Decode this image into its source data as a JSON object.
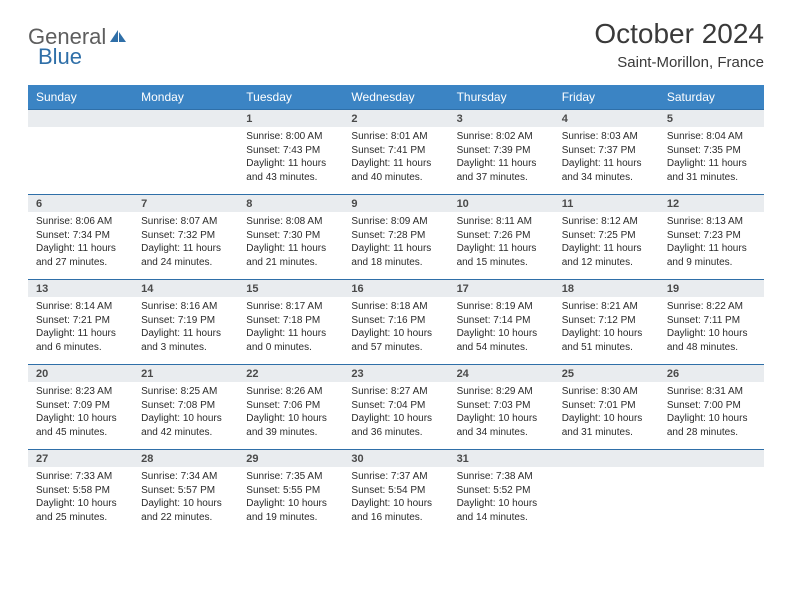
{
  "brand": {
    "part1": "General",
    "part2": "Blue"
  },
  "title": "October 2024",
  "location": "Saint-Morillon, France",
  "header_color": "#3b84c4",
  "accent_line_color": "#2f6fa8",
  "strip_bg": "#e9ecef",
  "dow": [
    "Sunday",
    "Monday",
    "Tuesday",
    "Wednesday",
    "Thursday",
    "Friday",
    "Saturday"
  ],
  "weeks": [
    [
      {
        "n": "",
        "sr": "",
        "ss": "",
        "dl": ""
      },
      {
        "n": "",
        "sr": "",
        "ss": "",
        "dl": ""
      },
      {
        "n": "1",
        "sr": "Sunrise: 8:00 AM",
        "ss": "Sunset: 7:43 PM",
        "dl": "Daylight: 11 hours and 43 minutes."
      },
      {
        "n": "2",
        "sr": "Sunrise: 8:01 AM",
        "ss": "Sunset: 7:41 PM",
        "dl": "Daylight: 11 hours and 40 minutes."
      },
      {
        "n": "3",
        "sr": "Sunrise: 8:02 AM",
        "ss": "Sunset: 7:39 PM",
        "dl": "Daylight: 11 hours and 37 minutes."
      },
      {
        "n": "4",
        "sr": "Sunrise: 8:03 AM",
        "ss": "Sunset: 7:37 PM",
        "dl": "Daylight: 11 hours and 34 minutes."
      },
      {
        "n": "5",
        "sr": "Sunrise: 8:04 AM",
        "ss": "Sunset: 7:35 PM",
        "dl": "Daylight: 11 hours and 31 minutes."
      }
    ],
    [
      {
        "n": "6",
        "sr": "Sunrise: 8:06 AM",
        "ss": "Sunset: 7:34 PM",
        "dl": "Daylight: 11 hours and 27 minutes."
      },
      {
        "n": "7",
        "sr": "Sunrise: 8:07 AM",
        "ss": "Sunset: 7:32 PM",
        "dl": "Daylight: 11 hours and 24 minutes."
      },
      {
        "n": "8",
        "sr": "Sunrise: 8:08 AM",
        "ss": "Sunset: 7:30 PM",
        "dl": "Daylight: 11 hours and 21 minutes."
      },
      {
        "n": "9",
        "sr": "Sunrise: 8:09 AM",
        "ss": "Sunset: 7:28 PM",
        "dl": "Daylight: 11 hours and 18 minutes."
      },
      {
        "n": "10",
        "sr": "Sunrise: 8:11 AM",
        "ss": "Sunset: 7:26 PM",
        "dl": "Daylight: 11 hours and 15 minutes."
      },
      {
        "n": "11",
        "sr": "Sunrise: 8:12 AM",
        "ss": "Sunset: 7:25 PM",
        "dl": "Daylight: 11 hours and 12 minutes."
      },
      {
        "n": "12",
        "sr": "Sunrise: 8:13 AM",
        "ss": "Sunset: 7:23 PM",
        "dl": "Daylight: 11 hours and 9 minutes."
      }
    ],
    [
      {
        "n": "13",
        "sr": "Sunrise: 8:14 AM",
        "ss": "Sunset: 7:21 PM",
        "dl": "Daylight: 11 hours and 6 minutes."
      },
      {
        "n": "14",
        "sr": "Sunrise: 8:16 AM",
        "ss": "Sunset: 7:19 PM",
        "dl": "Daylight: 11 hours and 3 minutes."
      },
      {
        "n": "15",
        "sr": "Sunrise: 8:17 AM",
        "ss": "Sunset: 7:18 PM",
        "dl": "Daylight: 11 hours and 0 minutes."
      },
      {
        "n": "16",
        "sr": "Sunrise: 8:18 AM",
        "ss": "Sunset: 7:16 PM",
        "dl": "Daylight: 10 hours and 57 minutes."
      },
      {
        "n": "17",
        "sr": "Sunrise: 8:19 AM",
        "ss": "Sunset: 7:14 PM",
        "dl": "Daylight: 10 hours and 54 minutes."
      },
      {
        "n": "18",
        "sr": "Sunrise: 8:21 AM",
        "ss": "Sunset: 7:12 PM",
        "dl": "Daylight: 10 hours and 51 minutes."
      },
      {
        "n": "19",
        "sr": "Sunrise: 8:22 AM",
        "ss": "Sunset: 7:11 PM",
        "dl": "Daylight: 10 hours and 48 minutes."
      }
    ],
    [
      {
        "n": "20",
        "sr": "Sunrise: 8:23 AM",
        "ss": "Sunset: 7:09 PM",
        "dl": "Daylight: 10 hours and 45 minutes."
      },
      {
        "n": "21",
        "sr": "Sunrise: 8:25 AM",
        "ss": "Sunset: 7:08 PM",
        "dl": "Daylight: 10 hours and 42 minutes."
      },
      {
        "n": "22",
        "sr": "Sunrise: 8:26 AM",
        "ss": "Sunset: 7:06 PM",
        "dl": "Daylight: 10 hours and 39 minutes."
      },
      {
        "n": "23",
        "sr": "Sunrise: 8:27 AM",
        "ss": "Sunset: 7:04 PM",
        "dl": "Daylight: 10 hours and 36 minutes."
      },
      {
        "n": "24",
        "sr": "Sunrise: 8:29 AM",
        "ss": "Sunset: 7:03 PM",
        "dl": "Daylight: 10 hours and 34 minutes."
      },
      {
        "n": "25",
        "sr": "Sunrise: 8:30 AM",
        "ss": "Sunset: 7:01 PM",
        "dl": "Daylight: 10 hours and 31 minutes."
      },
      {
        "n": "26",
        "sr": "Sunrise: 8:31 AM",
        "ss": "Sunset: 7:00 PM",
        "dl": "Daylight: 10 hours and 28 minutes."
      }
    ],
    [
      {
        "n": "27",
        "sr": "Sunrise: 7:33 AM",
        "ss": "Sunset: 5:58 PM",
        "dl": "Daylight: 10 hours and 25 minutes."
      },
      {
        "n": "28",
        "sr": "Sunrise: 7:34 AM",
        "ss": "Sunset: 5:57 PM",
        "dl": "Daylight: 10 hours and 22 minutes."
      },
      {
        "n": "29",
        "sr": "Sunrise: 7:35 AM",
        "ss": "Sunset: 5:55 PM",
        "dl": "Daylight: 10 hours and 19 minutes."
      },
      {
        "n": "30",
        "sr": "Sunrise: 7:37 AM",
        "ss": "Sunset: 5:54 PM",
        "dl": "Daylight: 10 hours and 16 minutes."
      },
      {
        "n": "31",
        "sr": "Sunrise: 7:38 AM",
        "ss": "Sunset: 5:52 PM",
        "dl": "Daylight: 10 hours and 14 minutes."
      },
      {
        "n": "",
        "sr": "",
        "ss": "",
        "dl": ""
      },
      {
        "n": "",
        "sr": "",
        "ss": "",
        "dl": ""
      }
    ]
  ]
}
